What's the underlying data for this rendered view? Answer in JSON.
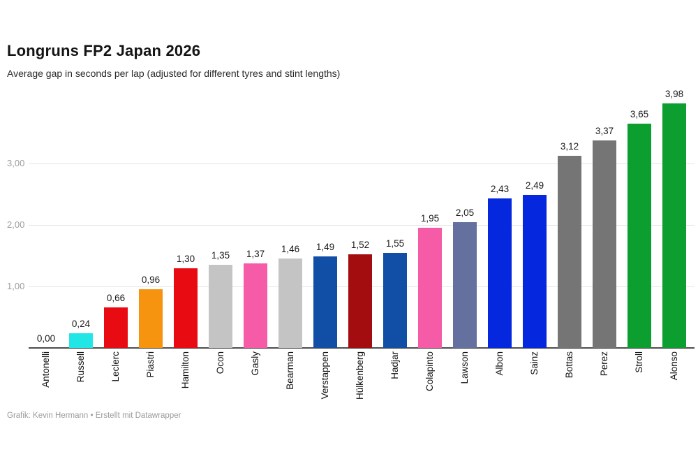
{
  "header": {
    "title": "Longruns FP2 Japan 2026",
    "subtitle": "Average gap in seconds per lap (adjusted for different tyres and stint lengths)"
  },
  "footer": {
    "credit": "Grafik: Kevin Hermann • Erstellt mit Datawrapper"
  },
  "chart_data": {
    "type": "bar",
    "title": "Longruns FP2 Japan 2026",
    "subtitle": "Average gap in seconds per lap (adjusted for different tyres and stint lengths)",
    "xlabel": "",
    "ylabel": "Average gap in seconds per lap",
    "ylim": [
      0,
      4.2
    ],
    "grid": true,
    "decimal_separator": ",",
    "yticks": [
      {
        "value": 1,
        "label": "1,00"
      },
      {
        "value": 2,
        "label": "2,00"
      },
      {
        "value": 3,
        "label": "3,00"
      }
    ],
    "categories": [
      "Antonelli",
      "Russell",
      "Leclerc",
      "Piastri",
      "Hamilton",
      "Ocon",
      "Gasly",
      "Bearman",
      "Verstappen",
      "Hülkenberg",
      "Hadjar",
      "Colapinto",
      "Lawson",
      "Albon",
      "Sainz",
      "Bottas",
      "Perez",
      "Stroll",
      "Alonso"
    ],
    "values": [
      0.0,
      0.24,
      0.66,
      0.96,
      1.3,
      1.35,
      1.37,
      1.46,
      1.49,
      1.52,
      1.55,
      1.95,
      2.05,
      2.43,
      2.49,
      3.12,
      3.37,
      3.65,
      3.98
    ],
    "value_labels": [
      "0,00",
      "0,24",
      "0,66",
      "0,96",
      "1,30",
      "1,35",
      "1,37",
      "1,46",
      "1,49",
      "1,52",
      "1,55",
      "1,95",
      "2,05",
      "2,43",
      "2,49",
      "3,12",
      "3,37",
      "3,65",
      "3,98"
    ],
    "bar_colors": [
      "#22e6e6",
      "#22e6e6",
      "#e80c12",
      "#f6930f",
      "#e80c12",
      "#c4c4c4",
      "#f65ba8",
      "#c4c4c4",
      "#114ea6",
      "#a30d10",
      "#114ea6",
      "#f65ba8",
      "#64719e",
      "#0527dd",
      "#0527dd",
      "#757575",
      "#757575",
      "#0c9f30",
      "#0c9f30"
    ],
    "colors": {
      "grid": "#e5e5e5",
      "axis_line": "#4d4d4d",
      "tick_text": "#9e9e9e",
      "value_text": "#1a1a1a",
      "category_text": "#111111"
    }
  }
}
